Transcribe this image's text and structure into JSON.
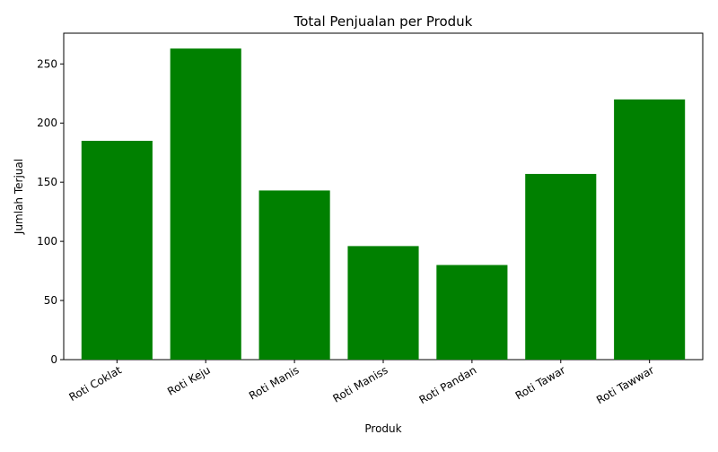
{
  "chart_data": {
    "type": "bar",
    "title": "Total Penjualan per Produk",
    "xlabel": "Produk",
    "ylabel": "Jumlah Terjual",
    "categories": [
      "Roti Coklat",
      "Roti Keju",
      "Roti Manis",
      "Roti Maniss",
      "Roti Pandan",
      "Roti Tawar",
      "Roti Tawwar"
    ],
    "values": [
      185,
      263,
      143,
      96,
      80,
      157,
      220
    ],
    "ylim": [
      0,
      276
    ],
    "yticks": [
      0,
      50,
      100,
      150,
      200,
      250
    ],
    "bar_color": "#008000",
    "grid": false,
    "legend": "none",
    "xtick_rotation_deg": 30
  }
}
